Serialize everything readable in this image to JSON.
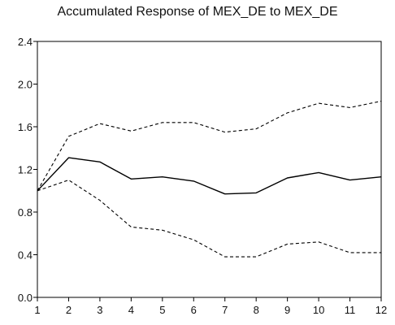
{
  "chart_data": {
    "type": "line",
    "title": "Accumulated Response of MEX_DE to MEX_DE",
    "xlabel": "",
    "ylabel": "",
    "x": [
      1,
      2,
      3,
      4,
      5,
      6,
      7,
      8,
      9,
      10,
      11,
      12
    ],
    "xlim": [
      1,
      12
    ],
    "ylim": [
      0.0,
      2.4
    ],
    "yticks": [
      "0.0",
      "0.4",
      "0.8",
      "1.2",
      "1.6",
      "2.0",
      "2.4"
    ],
    "xticks": [
      "1",
      "2",
      "3",
      "4",
      "5",
      "6",
      "7",
      "8",
      "9",
      "10",
      "11",
      "12"
    ],
    "grid": false,
    "legend": "none",
    "series": [
      {
        "style": "solid",
        "color": "#000000",
        "values": [
          1.0,
          1.31,
          1.27,
          1.11,
          1.13,
          1.09,
          0.97,
          0.98,
          1.12,
          1.17,
          1.1,
          1.13
        ]
      },
      {
        "style": "dashed",
        "color": "#000000",
        "values": [
          1.0,
          1.51,
          1.63,
          1.56,
          1.64,
          1.64,
          1.55,
          1.58,
          1.73,
          1.82,
          1.78,
          1.84
        ]
      },
      {
        "style": "dashed",
        "color": "#000000",
        "values": [
          1.0,
          1.1,
          0.91,
          0.66,
          0.63,
          0.54,
          0.38,
          0.38,
          0.5,
          0.52,
          0.42,
          0.42
        ]
      }
    ]
  }
}
